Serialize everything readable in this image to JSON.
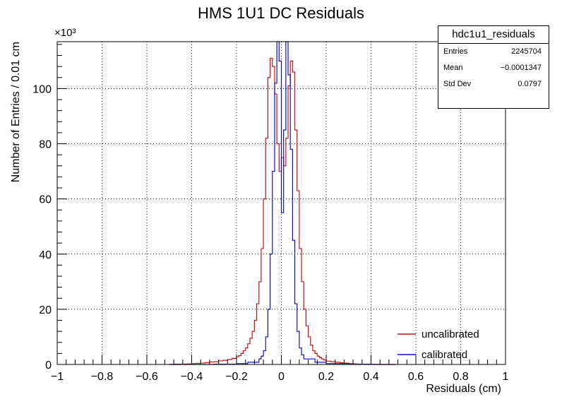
{
  "chart_data": {
    "type": "histogram",
    "title": "HMS 1U1 DC Residuals",
    "xlabel": "Residuals (cm)",
    "ylabel": "Number of Entries / 0.01 cm",
    "y_multiplier": "×10³",
    "xlim": [
      -1,
      1
    ],
    "ylim": [
      0,
      117
    ],
    "x_ticks": [
      -1,
      -0.8,
      -0.6,
      -0.4,
      -0.2,
      0,
      0.2,
      0.4,
      0.6,
      0.8,
      1
    ],
    "x_tick_labels": [
      "−1",
      "−0.8",
      "−0.6",
      "−0.4",
      "−0.2",
      "0",
      "0.2",
      "0.4",
      "0.6",
      "0.8",
      "1"
    ],
    "y_ticks": [
      0,
      20,
      40,
      60,
      80,
      100
    ],
    "y_tick_labels": [
      "0",
      "20",
      "40",
      "60",
      "80",
      "100"
    ],
    "grid": true,
    "legend_position": "bottom-right",
    "series": [
      {
        "name": "uncalibrated",
        "color": "#d01010",
        "x": [
          -0.5,
          -0.48,
          -0.46,
          -0.44,
          -0.42,
          -0.4,
          -0.38,
          -0.36,
          -0.34,
          -0.32,
          -0.3,
          -0.28,
          -0.26,
          -0.24,
          -0.22,
          -0.2,
          -0.19,
          -0.18,
          -0.17,
          -0.16,
          -0.15,
          -0.14,
          -0.13,
          -0.12,
          -0.11,
          -0.1,
          -0.09,
          -0.08,
          -0.07,
          -0.06,
          -0.05,
          -0.04,
          -0.03,
          -0.02,
          -0.01,
          0,
          0.01,
          0.02,
          0.03,
          0.04,
          0.05,
          0.06,
          0.07,
          0.08,
          0.09,
          0.1,
          0.11,
          0.12,
          0.13,
          0.14,
          0.15,
          0.16,
          0.17,
          0.18,
          0.19,
          0.2,
          0.22,
          0.24,
          0.26,
          0.28,
          0.3,
          0.32,
          0.34,
          0.36,
          0.38,
          0.4,
          0.42,
          0.44,
          0.46,
          0.48,
          0.5
        ],
        "y": [
          0,
          0.1,
          0.1,
          0.1,
          0.2,
          0.3,
          0.4,
          0.5,
          0.7,
          0.9,
          1.0,
          1.3,
          1.5,
          1.8,
          2.2,
          2.8,
          3.2,
          4.0,
          5.0,
          6.0,
          7.5,
          9.5,
          12,
          16,
          22,
          30,
          42,
          60,
          82,
          104,
          111,
          108,
          98,
          80,
          70,
          75,
          72,
          82,
          101,
          110,
          106,
          85,
          63,
          42,
          30,
          20,
          14,
          10,
          7,
          5,
          4,
          3,
          2.5,
          2.0,
          1.6,
          1.2,
          1.0,
          0.8,
          0.6,
          0.5,
          0.3,
          0.2,
          0.1,
          0.1,
          0.05,
          0.05,
          0,
          0,
          0,
          0,
          0
        ]
      },
      {
        "name": "calibrated",
        "color": "#1010c0",
        "x": [
          -0.5,
          -0.4,
          -0.3,
          -0.2,
          -0.15,
          -0.1,
          -0.09,
          -0.08,
          -0.07,
          -0.06,
          -0.05,
          -0.04,
          -0.03,
          -0.02,
          -0.01,
          0,
          0.01,
          0.02,
          0.03,
          0.04,
          0.05,
          0.06,
          0.07,
          0.08,
          0.09,
          0.1,
          0.15,
          0.2,
          0.3,
          0.4,
          0.5
        ],
        "y": [
          0,
          0,
          0.1,
          0.3,
          0.8,
          2,
          3,
          5,
          10,
          20,
          40,
          70,
          102,
          117,
          110,
          55,
          85,
          117,
          105,
          78,
          45,
          22,
          12,
          6,
          3.5,
          2,
          0.8,
          0.3,
          0.1,
          0,
          0
        ]
      }
    ]
  },
  "stats_box": {
    "title": "hdc1u1_residuals",
    "rows": [
      {
        "label": "Entries",
        "value": "2245704"
      },
      {
        "label": "Mean",
        "value": "−0.0001347"
      },
      {
        "label": "Std Dev",
        "value": "0.0797"
      }
    ]
  }
}
